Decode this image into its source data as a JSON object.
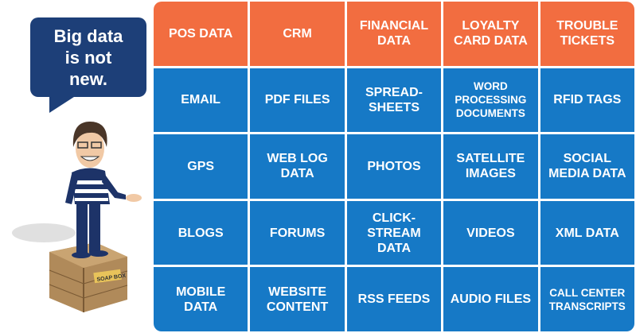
{
  "speech_bubble": {
    "lines": [
      "Big data",
      "is not",
      "new."
    ]
  },
  "figure": {
    "crate_label": "SOAP BOX"
  },
  "colors": {
    "header": "#f26d40",
    "body": "#1679c6",
    "bubble": "#1d3f78"
  },
  "grid": {
    "header": [
      "POS DATA",
      "CRM",
      "FINANCIAL DATA",
      "LOYALTY CARD DATA",
      "TROUBLE TICKETS"
    ],
    "rows": [
      [
        "EMAIL",
        "PDF FILES",
        "SPREAD-SHEETS",
        "WORD PROCESSING DOCUMENTS",
        "RFID TAGS"
      ],
      [
        "GPS",
        "WEB LOG DATA",
        "PHOTOS",
        "SATELLITE IMAGES",
        "SOCIAL MEDIA DATA"
      ],
      [
        "BLOGS",
        "FORUMS",
        "CLICK-STREAM DATA",
        "VIDEOS",
        "XML DATA"
      ],
      [
        "MOBILE DATA",
        "WEBSITE CONTENT",
        "RSS FEEDS",
        "AUDIO FILES",
        "CALL CENTER TRANSCRIPTS"
      ]
    ]
  }
}
